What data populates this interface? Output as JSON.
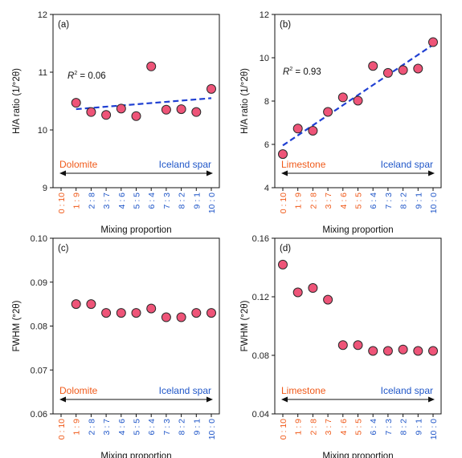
{
  "colors": {
    "marker_fill": "#ee5478",
    "marker_stroke": "#2a2a2a",
    "fit_line": "#1f3fd2",
    "orange_label": "#f05a1a",
    "blue_label": "#1f56c8",
    "axis": "#111111"
  },
  "chart_data": [
    {
      "type": "scatter",
      "panel_label": "(a)",
      "ylabel": "H/A ratio (1/°2θ)",
      "xlabel": "Mixing proportion",
      "categories": [
        "0 : 10",
        "1 : 9",
        "2 : 8",
        "3 : 7",
        "4 : 6",
        "5 : 5",
        "6 : 4",
        "7 : 3",
        "8 : 2",
        "9 : 1",
        "10 : 0"
      ],
      "category_colors": [
        "orange",
        "orange",
        "blue",
        "blue",
        "blue",
        "blue",
        "blue",
        "blue",
        "blue",
        "blue",
        "blue"
      ],
      "ylim": [
        9,
        12
      ],
      "yticks": [
        "9",
        "10",
        "11",
        "12"
      ],
      "points": [
        {
          "x": "1 : 9",
          "y": 10.47
        },
        {
          "x": "2 : 8",
          "y": 10.31
        },
        {
          "x": "3 : 7",
          "y": 10.26
        },
        {
          "x": "4 : 6",
          "y": 10.37
        },
        {
          "x": "5 : 5",
          "y": 10.24
        },
        {
          "x": "6 : 4",
          "y": 11.1
        },
        {
          "x": "7 : 3",
          "y": 10.35
        },
        {
          "x": "8 : 2",
          "y": 10.36
        },
        {
          "x": "9 : 1",
          "y": 10.31
        },
        {
          "x": "10 : 0",
          "y": 10.71
        }
      ],
      "fit": {
        "x_start": "1 : 9",
        "y_start": 10.36,
        "x_end": "10 : 0",
        "y_end": 10.55
      },
      "r2_label": "R",
      "r2_value": " = 0.06",
      "left_mineral": "Dolomite",
      "right_mineral": "Iceland spar"
    },
    {
      "type": "scatter",
      "panel_label": "(b)",
      "ylabel": "H/A ratio (1/°2θ)",
      "xlabel": "Mixing proportion",
      "categories": [
        "0 : 10",
        "1 : 9",
        "2 : 8",
        "3 : 7",
        "4 : 6",
        "5 : 5",
        "6 : 4",
        "7 : 3",
        "8 : 2",
        "9 : 1",
        "10 : 0"
      ],
      "category_colors": [
        "orange",
        "orange",
        "orange",
        "orange",
        "orange",
        "orange",
        "blue",
        "blue",
        "blue",
        "blue",
        "blue"
      ],
      "ylim": [
        4,
        12
      ],
      "yticks": [
        "4",
        "6",
        "8",
        "10",
        "12"
      ],
      "points": [
        {
          "x": "0 : 10",
          "y": 5.55
        },
        {
          "x": "1 : 9",
          "y": 6.73
        },
        {
          "x": "2 : 8",
          "y": 6.63
        },
        {
          "x": "3 : 7",
          "y": 7.5
        },
        {
          "x": "4 : 6",
          "y": 8.17
        },
        {
          "x": "5 : 5",
          "y": 8.02
        },
        {
          "x": "6 : 4",
          "y": 9.62
        },
        {
          "x": "7 : 3",
          "y": 9.3
        },
        {
          "x": "8 : 2",
          "y": 9.43
        },
        {
          "x": "9 : 1",
          "y": 9.5
        },
        {
          "x": "10 : 0",
          "y": 10.72
        }
      ],
      "fit": {
        "x_start": "0 : 10",
        "y_start": 5.95,
        "x_end": "10 : 0",
        "y_end": 10.6
      },
      "r2_label": "R",
      "r2_value": " = 0.93",
      "left_mineral": "Limestone",
      "right_mineral": "Iceland spar"
    },
    {
      "type": "scatter",
      "panel_label": "(c)",
      "ylabel": "FWHM (°2θ)",
      "xlabel": "Mixing proportion",
      "categories": [
        "0 : 10",
        "1 : 9",
        "2 : 8",
        "3 : 7",
        "4 : 6",
        "5 : 5",
        "6 : 4",
        "7 : 3",
        "8 : 2",
        "9 : 1",
        "10 : 0"
      ],
      "category_colors": [
        "orange",
        "orange",
        "blue",
        "blue",
        "blue",
        "blue",
        "blue",
        "blue",
        "blue",
        "blue",
        "blue"
      ],
      "ylim": [
        0.06,
        0.1
      ],
      "yticks": [
        "0.06",
        "0.07",
        "0.08",
        "0.09",
        "0.10"
      ],
      "points": [
        {
          "x": "1 : 9",
          "y": 0.085
        },
        {
          "x": "2 : 8",
          "y": 0.085
        },
        {
          "x": "3 : 7",
          "y": 0.083
        },
        {
          "x": "4 : 6",
          "y": 0.083
        },
        {
          "x": "5 : 5",
          "y": 0.083
        },
        {
          "x": "6 : 4",
          "y": 0.084
        },
        {
          "x": "7 : 3",
          "y": 0.082
        },
        {
          "x": "8 : 2",
          "y": 0.082
        },
        {
          "x": "9 : 1",
          "y": 0.083
        },
        {
          "x": "10 : 0",
          "y": 0.083
        }
      ],
      "left_mineral": "Dolomite",
      "right_mineral": "Iceland spar"
    },
    {
      "type": "scatter",
      "panel_label": "(d)",
      "ylabel": "FWHM (°2θ)",
      "xlabel": "Mixing proportion",
      "categories": [
        "0 : 10",
        "1 : 9",
        "2 : 8",
        "3 : 7",
        "4 : 6",
        "5 : 5",
        "6 : 4",
        "7 : 3",
        "8 : 2",
        "9 : 1",
        "10 : 0"
      ],
      "category_colors": [
        "orange",
        "orange",
        "orange",
        "orange",
        "orange",
        "orange",
        "blue",
        "blue",
        "blue",
        "blue",
        "blue"
      ],
      "ylim": [
        0.04,
        0.16
      ],
      "yticks": [
        "0.04",
        "0.08",
        "0.12",
        "0.16"
      ],
      "points": [
        {
          "x": "0 : 10",
          "y": 0.142
        },
        {
          "x": "1 : 9",
          "y": 0.123
        },
        {
          "x": "2 : 8",
          "y": 0.126
        },
        {
          "x": "3 : 7",
          "y": 0.118
        },
        {
          "x": "4 : 6",
          "y": 0.087
        },
        {
          "x": "5 : 5",
          "y": 0.087
        },
        {
          "x": "6 : 4",
          "y": 0.083
        },
        {
          "x": "7 : 3",
          "y": 0.083
        },
        {
          "x": "8 : 2",
          "y": 0.084
        },
        {
          "x": "9 : 1",
          "y": 0.083
        },
        {
          "x": "10 : 0",
          "y": 0.083
        }
      ],
      "left_mineral": "Limestone",
      "right_mineral": "Iceland spar"
    }
  ]
}
